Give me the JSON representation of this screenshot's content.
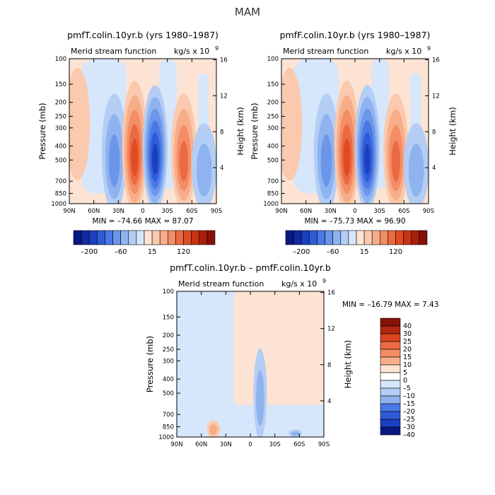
{
  "page": {
    "title": "MAM"
  },
  "chart_data": [
    {
      "type": "heatmap",
      "panel": "top-left",
      "title": "pmfT.colin.10yr.b (yrs 1980–1987)",
      "subtitle": "Merid stream function",
      "units_label": "kg/s x 10",
      "units_exp": "9",
      "xlabel": "",
      "ylabel": "Pressure (mb)",
      "y2label": "Height (km)",
      "x_ticks": [
        "90N",
        "60N",
        "30N",
        "0",
        "30S",
        "60S",
        "90S"
      ],
      "y_ticks": [
        "100",
        "150",
        "200",
        "250",
        "300",
        "400",
        "500",
        "700",
        "850",
        "1000"
      ],
      "y2_ticks": [
        "16",
        "12",
        "8",
        "4"
      ],
      "min_text": "MIN = –74.66   MAX =   87.07",
      "min": -74.66,
      "max": 87.07,
      "colorbar_labels": [
        "–200",
        "–60",
        "15",
        "120"
      ],
      "colorbar_placement": "bottom",
      "features": [
        {
          "lat": 35,
          "p_top": 150,
          "p_bot": 980,
          "sign": "neg",
          "level": 2
        },
        {
          "lat": 10,
          "p_top": 120,
          "p_bot": 960,
          "sign": "pos",
          "level": 4
        },
        {
          "lat": -15,
          "p_top": 130,
          "p_bot": 950,
          "sign": "neg",
          "level": 5
        },
        {
          "lat": -50,
          "p_top": 150,
          "p_bot": 960,
          "sign": "pos",
          "level": 3
        },
        {
          "lat": -75,
          "p_top": 250,
          "p_bot": 980,
          "sign": "neg",
          "level": 1
        },
        {
          "lat": 80,
          "p_top": 100,
          "p_bot": 600,
          "sign": "pos",
          "level": 0
        }
      ]
    },
    {
      "type": "heatmap",
      "panel": "top-right",
      "title": "pmfF.colin.10yr.b (yrs 1980–1987)",
      "subtitle": "Merid stream function",
      "units_label": "kg/s x 10",
      "units_exp": "9",
      "xlabel": "",
      "ylabel": "Pressure (mb)",
      "y2label": "Height (km)",
      "x_ticks": [
        "90N",
        "60N",
        "30N",
        "0",
        "30S",
        "60S",
        "90S"
      ],
      "y_ticks": [
        "100",
        "150",
        "200",
        "250",
        "300",
        "400",
        "500",
        "700",
        "850",
        "1000"
      ],
      "y2_ticks": [
        "16",
        "12",
        "8",
        "4"
      ],
      "min_text": "MIN = –75.73   MAX =   96.90",
      "min": -75.73,
      "max": 96.9,
      "colorbar_labels": [
        "–200",
        "–60",
        "15",
        "120"
      ],
      "colorbar_placement": "bottom",
      "features": [
        {
          "lat": 35,
          "p_top": 150,
          "p_bot": 980,
          "sign": "neg",
          "level": 2
        },
        {
          "lat": 10,
          "p_top": 120,
          "p_bot": 960,
          "sign": "pos",
          "level": 4
        },
        {
          "lat": -15,
          "p_top": 130,
          "p_bot": 950,
          "sign": "neg",
          "level": 5
        },
        {
          "lat": -50,
          "p_top": 150,
          "p_bot": 960,
          "sign": "pos",
          "level": 3
        },
        {
          "lat": -75,
          "p_top": 250,
          "p_bot": 980,
          "sign": "neg",
          "level": 1
        },
        {
          "lat": 80,
          "p_top": 100,
          "p_bot": 600,
          "sign": "pos",
          "level": 0
        }
      ]
    },
    {
      "type": "heatmap",
      "panel": "bottom",
      "title": "pmfT.colin.10yr.b – pmfF.colin.10yr.b",
      "subtitle": "Merid stream function",
      "units_label": "kg/s x 10",
      "units_exp": "9",
      "xlabel": "",
      "ylabel": "Pressure (mb)",
      "y2label": "Height (km)",
      "x_ticks": [
        "90N",
        "60N",
        "30N",
        "0",
        "30S",
        "60S",
        "90S"
      ],
      "y_ticks": [
        "100",
        "150",
        "200",
        "250",
        "300",
        "400",
        "500",
        "700",
        "850",
        "1000"
      ],
      "y2_ticks": [
        "16",
        "12",
        "8",
        "4"
      ],
      "min_text": "MIN = –16.79   MAX =    7.43",
      "min": -16.79,
      "max": 7.43,
      "colorbar_labels": [
        "40",
        "30",
        "25",
        "20",
        "15",
        "10",
        "5",
        "0",
        "–5",
        "–10",
        "–15",
        "–20",
        "–25",
        "–30",
        "–40"
      ],
      "colorbar_placement": "right",
      "features": [
        {
          "lat": -12,
          "p_top": 300,
          "p_bot": 650,
          "sign": "neg",
          "level": 2
        },
        {
          "lat": -12,
          "p_top": 220,
          "p_bot": 920,
          "sign": "neg",
          "level": 1
        },
        {
          "lat": -55,
          "p_top": 880,
          "p_bot": 990,
          "sign": "neg",
          "level": 1
        },
        {
          "lat": 45,
          "p_top": 750,
          "p_bot": 990,
          "sign": "pos",
          "level": 1
        }
      ]
    }
  ],
  "colors": {
    "neg": [
      "#d6e6fb",
      "#b3cdf5",
      "#8fb3ef",
      "#6b96ea",
      "#4a78e4",
      "#2e5bd8",
      "#1c3fc0",
      "#102aa0",
      "#081880"
    ],
    "pos": [
      "#fde3d3",
      "#fbc9ad",
      "#f8ad8a",
      "#f38d66",
      "#ec6a43",
      "#e04b22",
      "#c83312",
      "#a8200a",
      "#861105"
    ],
    "bottom_bar": [
      "#861105",
      "#b02610",
      "#d8441c",
      "#ec6a43",
      "#f38d66",
      "#f8ad8a",
      "#fde3d3",
      "#ffffff",
      "#d6e6fb",
      "#b3cdf5",
      "#8fb3ef",
      "#4a78e4",
      "#2e5bd8",
      "#1c3fc0",
      "#081880"
    ],
    "top_bar": [
      "#081880",
      "#102aa0",
      "#1c3fc0",
      "#2e5bd8",
      "#4a78e4",
      "#6b96ea",
      "#8fb3ef",
      "#b3cdf5",
      "#d6e6fb",
      "#fde3d3",
      "#fbc9ad",
      "#f8ad8a",
      "#f38d66",
      "#ec6a43",
      "#e04b22",
      "#c83312",
      "#a8200a",
      "#861105"
    ]
  }
}
